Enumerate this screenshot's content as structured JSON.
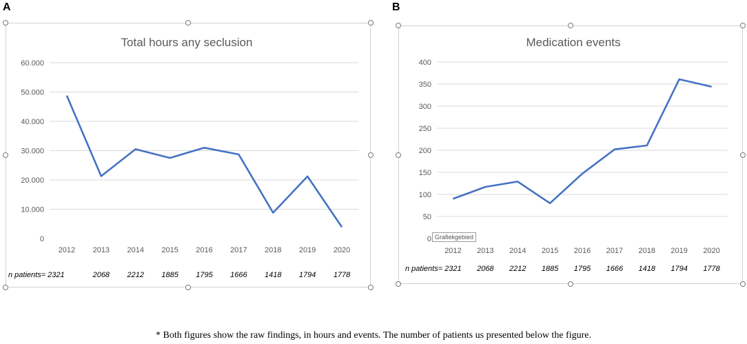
{
  "panels": [
    {
      "letter": "A",
      "chart_data": {
        "type": "line",
        "title": "Total hours any seclusion",
        "categories": [
          "2012",
          "2013",
          "2014",
          "2015",
          "2016",
          "2017",
          "2018",
          "2019",
          "2020"
        ],
        "values": [
          48800,
          21300,
          30500,
          27500,
          31000,
          28700,
          8800,
          21200,
          3900
        ],
        "ylim": [
          0,
          60000
        ],
        "yticks": [
          0,
          10000,
          20000,
          30000,
          40000,
          50000,
          60000
        ],
        "ytick_labels": [
          "0",
          "10.000",
          "20.000",
          "30.000",
          "40.000",
          "50.000",
          "60.000"
        ],
        "xlabel": "",
        "ylabel": "",
        "grid": true,
        "color": "#4472c4"
      },
      "n_patients_label": "n patients= 2321",
      "n_patients": [
        "2068",
        "2212",
        "1885",
        "1795",
        "1666",
        "1418",
        "1794",
        "1778"
      ]
    },
    {
      "letter": "B",
      "chart_data": {
        "type": "line",
        "title": "Medication events",
        "categories": [
          "2012",
          "2013",
          "2014",
          "2015",
          "2016",
          "2017",
          "2018",
          "2019",
          "2020"
        ],
        "values": [
          90,
          117,
          129,
          80,
          147,
          202,
          211,
          361,
          344
        ],
        "ylim": [
          0,
          400
        ],
        "yticks": [
          0,
          50,
          100,
          150,
          200,
          250,
          300,
          350,
          400
        ],
        "ytick_labels": [
          "0",
          "50",
          "100",
          "150",
          "200",
          "250",
          "300",
          "350",
          "400"
        ],
        "xlabel": "",
        "ylabel": "",
        "grid": true,
        "color": "#4472c4"
      },
      "n_patients_label": "n patients= 2321",
      "n_patients": [
        "2068",
        "2212",
        "1885",
        "1795",
        "1666",
        "1418",
        "1794",
        "1778"
      ],
      "tooltip": "Grafiekgebied"
    }
  ],
  "caption": "* Both figures show the raw findings, in hours and events. The number of patients us presented below the figure."
}
